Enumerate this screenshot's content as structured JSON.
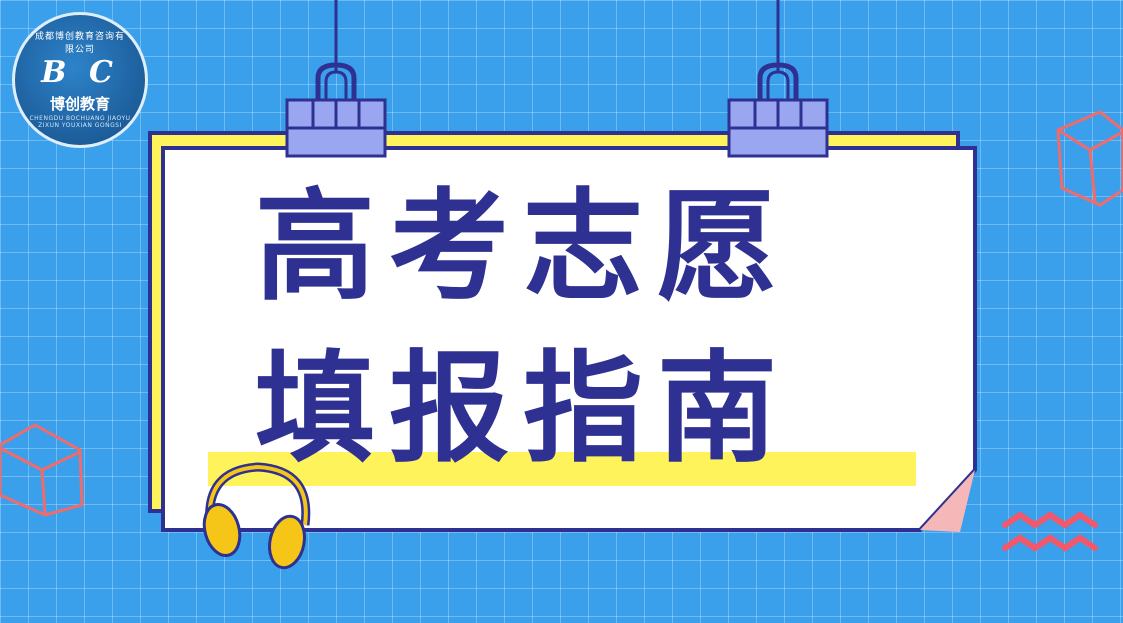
{
  "title": {
    "line1": "高考志愿",
    "line2": "填报指南"
  },
  "logo": {
    "brand_letters": "B C",
    "chinese_name": "博创教育",
    "top_arc_text": "成都博创教育咨询有限公司",
    "english_text": "CHENGDU BOCHUANG JIAOYU ZIXUN YOUXIAN GONGSI"
  },
  "colors": {
    "background": "#3aa0ec",
    "card": "#ffffff",
    "card_border": "#2e3192",
    "title_text": "#2e3192",
    "highlight_yellow": "#fff35c",
    "clip": "#9aa7f0",
    "cube_outline": "#f06b6b",
    "wave": "#f2576a",
    "page_curl": "#f5b7b7",
    "headphones": "#f5c518"
  },
  "decorations": [
    "binder-clip-left",
    "binder-clip-right",
    "cube-top-right",
    "cube-left",
    "wave-lines",
    "headphones",
    "page-curl"
  ]
}
